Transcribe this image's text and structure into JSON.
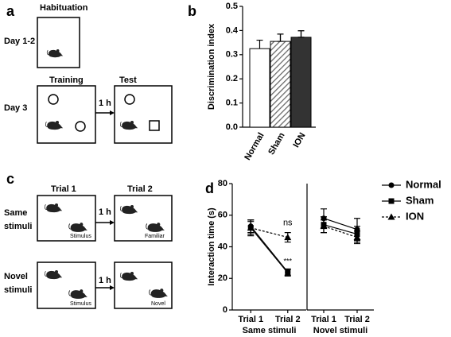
{
  "diagram_a": {
    "label": "a",
    "title": "Habituation",
    "row1": "Day 1-2",
    "row2": "Day 3",
    "training": "Training",
    "test": "Test",
    "delay": "1 h"
  },
  "diagram_c": {
    "label": "c",
    "trial1": "Trial 1",
    "trial2": "Trial 2",
    "same": [
      "Same",
      "stimuli"
    ],
    "novel": [
      "Novel",
      "stimuli"
    ],
    "delay_same": "1 h",
    "delay_novel": "1 h",
    "same_left": "Stimulus",
    "same_right": "Familiar",
    "novel_left": "Stimulus",
    "novel_right": "Novel"
  },
  "chart_data": [
    {
      "type": "bar",
      "label": "b",
      "ylabel": "Discrimination index",
      "categories": [
        "Normal",
        "Sham",
        "ION"
      ],
      "values": [
        0.325,
        0.355,
        0.372
      ],
      "errors": [
        0.035,
        0.03,
        0.027
      ],
      "styles": [
        "open",
        "hatched",
        "solid"
      ],
      "color": "#333333",
      "ylim": [
        0,
        0.5
      ],
      "yticks": [
        {
          "value": 0,
          "label": "0.0"
        },
        0.1,
        0.2,
        0.3,
        0.4,
        0.5
      ]
    },
    {
      "type": "line",
      "label": "d",
      "ylabel": "Interaction time (s)",
      "categories": [
        "Trial 1",
        "Trial 2",
        "Trial 1",
        "Trial 2"
      ],
      "groups": [
        "Same stimuli",
        "Novel stimuli"
      ],
      "series": [
        {
          "name": "Normal",
          "color": "#000000",
          "marker": "circle",
          "line_style": "solid",
          "values": [
            53,
            24,
            58,
            51
          ],
          "errors": [
            4,
            2,
            6,
            7
          ]
        },
        {
          "name": "Sham",
          "color": "#000000",
          "marker": "square",
          "line_style": "solid",
          "values": [
            52,
            23.5,
            54,
            48
          ],
          "errors": [
            5,
            2,
            5,
            5
          ]
        },
        {
          "name": "ION",
          "color": "#000000",
          "marker": "triangle",
          "line_style": "dashed",
          "values": [
            52,
            46,
            53,
            46
          ],
          "errors": [
            4,
            3,
            4,
            4
          ]
        }
      ],
      "annotations": [
        "ns",
        "***"
      ],
      "ylim": [
        0,
        80
      ],
      "yticks": [
        0,
        20,
        40,
        60,
        80
      ]
    }
  ]
}
